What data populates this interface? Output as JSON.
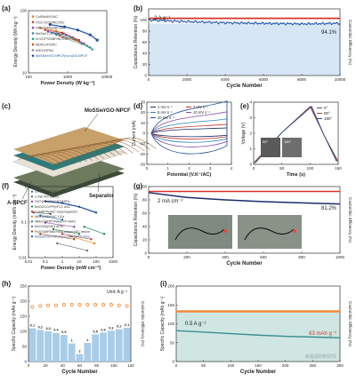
{
  "panels": {
    "a": {
      "label": "(a)"
    },
    "b": {
      "label": "(b)"
    },
    "c": {
      "label": "(c)"
    },
    "d": {
      "label": "(d)"
    },
    "e": {
      "label": "(e)"
    },
    "f": {
      "label": "(f)"
    },
    "g": {
      "label": "(g)"
    },
    "h": {
      "label": "(h)"
    },
    "i": {
      "label": "(i)"
    }
  },
  "watermark": "新能源材料研究",
  "colors": {
    "blue": "#2b5fb0",
    "red": "#d9322b",
    "orange": "#ef8a3a",
    "lightblue": "#a9cde8",
    "teal": "#3a8f8f",
    "navy": "#1a2c6b"
  },
  "chart_data": [
    {
      "id": "a",
      "type": "scatter",
      "xlabel": "Power Density (W kg⁻¹)",
      "ylabel": "Energy Density (Wh kg⁻¹)",
      "xscale": "log",
      "yscale": "log",
      "xticks": [
        "100",
        "1000",
        "10000"
      ],
      "yticks": [
        "10",
        "100"
      ],
      "legend": [
        "Co9Se8//G/AC",
        "VO2-V2O5/NC//AC",
        "NiSe2/NiSe/NF//AC",
        "MoSe2-C-CNTs//AC",
        "N-VC/PVMBP/NC/NA",
        "MDPC//PDPC",
        "KNO//DPAC",
        "MoSSe/rGO-NPCF(no.s)//A-NPCF"
      ],
      "legend_colors": [
        "#e67e22",
        "#c0392b",
        "#8e44ad",
        "#2980b9",
        "#16a085",
        "#d35400",
        "#7f8c8d",
        "#1f4e9c"
      ],
      "series": [
        {
          "values": [
            [
              80,
              58
            ],
            [
              300,
              50
            ],
            [
              1200,
              35
            ],
            [
              4000,
              22
            ]
          ]
        },
        {
          "values": [
            [
              120,
              52
            ],
            [
              500,
              45
            ],
            [
              2000,
              30
            ]
          ]
        },
        {
          "values": [
            [
              150,
              48
            ],
            [
              700,
              40
            ],
            [
              3000,
              25
            ]
          ]
        },
        {
          "values": [
            [
              200,
              45
            ],
            [
              1000,
              35
            ],
            [
              5000,
              20
            ]
          ]
        },
        {
          "values": [
            [
              300,
              40
            ],
            [
              1500,
              30
            ],
            [
              6000,
              18
            ]
          ]
        },
        {
          "values": [
            [
              400,
              38
            ],
            [
              2000,
              28
            ]
          ]
        },
        {
          "values": [
            [
              500,
              35
            ],
            [
              2500,
              24
            ]
          ]
        },
        {
          "values": [
            [
              180,
              70
            ],
            [
              600,
              62
            ],
            [
              1800,
              52
            ],
            [
              5000,
              40
            ],
            [
              9000,
              30
            ]
          ]
        }
      ]
    },
    {
      "id": "b",
      "type": "line",
      "xlabel": "Cycle Number",
      "ylabel": "Capacitance Retention (%)",
      "y2label": "Coulombic Efficiency (%)",
      "xlim": [
        0,
        10000
      ],
      "ylim": [
        0,
        120
      ],
      "xticks": [
        "0",
        "2000",
        "4000",
        "6000",
        "8000",
        "10000"
      ],
      "yticks": [
        "0",
        "20",
        "40",
        "60",
        "80",
        "100"
      ],
      "annotation": "2 A g⁻¹",
      "end_label": "94.1%",
      "series": [
        {
          "values": [
            [
              0,
              100
            ],
            [
              2000,
              97
            ],
            [
              4000,
              95
            ],
            [
              6000,
              94
            ],
            [
              8000,
              93
            ],
            [
              10000,
              94.1
            ]
          ]
        },
        {
          "values": [
            [
              0,
              100
            ],
            [
              10000,
              100
            ]
          ]
        }
      ]
    },
    {
      "id": "d",
      "type": "line",
      "xlabel": "Potential (V.K⁻/AC)",
      "ylabel": "Current (mA)",
      "xticks": [
        "0",
        "1",
        "2",
        "3",
        "4"
      ],
      "yticks": [
        "-30",
        "-20",
        "-10",
        "0",
        "10",
        "20",
        "30"
      ],
      "legend": [
        "1 mV s⁻¹",
        "2 mV s⁻¹",
        "5 mV s⁻¹",
        "10 mV s⁻¹",
        "20 mV s⁻¹"
      ]
    },
    {
      "id": "e",
      "type": "line",
      "xlabel": "Time (s)",
      "ylabel": "Voltage (V)",
      "xticks": [
        "0",
        "50",
        "100",
        "150"
      ],
      "yticks": [
        "0",
        "1",
        "2",
        "3",
        "4"
      ],
      "legend": [
        "0°",
        "90°",
        "180°"
      ],
      "series": [
        {
          "values": [
            [
              0,
              0.1
            ],
            [
              100,
              4
            ],
            [
              150,
              0.2
            ]
          ]
        }
      ]
    },
    {
      "id": "f",
      "type": "scatter",
      "xlabel": "Power Density (mW cm⁻³)",
      "ylabel": "Energy Density (mWh cm⁻³)",
      "xscale": "log",
      "yscale": "log",
      "xticks": [
        "0.01",
        "0.1",
        "1",
        "10",
        "100",
        "1000"
      ],
      "yticks": [
        "0.01",
        "0.1",
        "1"
      ],
      "legend": [
        "GF/NTO//CT NC",
        "Li thin film battery",
        "CNT@MnO2//CNT@PPy",
        "MnO2/CC//PPy/FCC ASC",
        "CuS@PPy//AC Supercapacitor",
        "NiSe2/NiSe//AC LICe",
        "NiMnO3/FPP//NiAA:FP FAAS",
        "MnO2/Ni(OH)2 APSC",
        "Fe2O3@PANI//PANI-based ASC device",
        "MoSSe/rGO-NPCF(no.s)//A-NPCF KiCe"
      ],
      "legend_colors": [
        "#2471a3",
        "#555555",
        "#7d3c98",
        "#1e8449",
        "#b03a2e",
        "#d68910",
        "#117a65",
        "#5d6d7e",
        "#a04000",
        "#1f4e9c"
      ],
      "series": [
        {
          "values": [
            [
              0.05,
              0.3
            ],
            [
              1,
              0.2
            ]
          ]
        },
        {
          "values": [
            [
              0.02,
              0.4
            ],
            [
              0.2,
              0.35
            ]
          ]
        },
        {
          "values": [
            [
              0.1,
              0.15
            ],
            [
              5,
              0.1
            ]
          ]
        },
        {
          "values": [
            [
              0.3,
              0.08
            ],
            [
              10,
              0.05
            ]
          ]
        },
        {
          "values": [
            [
              1,
              0.05
            ],
            [
              50,
              0.03
            ]
          ]
        },
        {
          "values": [
            [
              3,
              0.04
            ],
            [
              80,
              0.02
            ]
          ]
        },
        {
          "values": [
            [
              20,
              0.1
            ],
            [
              300,
              0.05
            ]
          ]
        },
        {
          "values": [
            [
              0.5,
              0.02
            ],
            [
              30,
              0.01
            ]
          ]
        },
        {
          "values": [
            [
              0.05,
              0.05
            ],
            [
              5,
              0.03
            ]
          ]
        },
        {
          "values": [
            [
              0.1,
              1.2
            ],
            [
              1,
              1.0
            ],
            [
              10,
              0.7
            ],
            [
              100,
              0.4
            ]
          ]
        }
      ]
    },
    {
      "id": "g",
      "type": "line",
      "xlabel": "Cycle Number",
      "ylabel": "Capacitance Retention (%)",
      "y2label": "Coulombic Efficiency (%)",
      "xlim": [
        0,
        1000
      ],
      "ylim": [
        0,
        100
      ],
      "xticks": [
        "0",
        "200",
        "400",
        "600",
        "800",
        "1000"
      ],
      "yticks": [
        "0",
        "20",
        "40",
        "60",
        "80",
        "100"
      ],
      "annotation": "2 mA cm⁻²",
      "end_label": "81.2%",
      "series": [
        {
          "values": [
            [
              0,
              100
            ],
            [
              200,
              92
            ],
            [
              400,
              88
            ],
            [
              600,
              85
            ],
            [
              800,
              83
            ],
            [
              1000,
              81.2
            ]
          ]
        },
        {
          "values": [
            [
              0,
              100
            ],
            [
              1000,
              100
            ]
          ]
        }
      ]
    },
    {
      "id": "h",
      "type": "bar",
      "xlabel": "Cycle Number",
      "ylabel": "Specific Capacity (mAh g⁻¹)",
      "y2label": "Coulombic Efficiency (%)",
      "xlim": [
        0,
        130
      ],
      "ylim": [
        0,
        250
      ],
      "xticks": [
        "0",
        "20",
        "40",
        "60",
        "80",
        "100",
        "120"
      ],
      "yticks": [
        "0",
        "50",
        "100",
        "150",
        "200",
        "250"
      ],
      "unit_label": "Unit: A g⁻¹",
      "rate_labels": [
        "0.1",
        "0.2",
        "0.3",
        "0.4",
        "0.5",
        "1",
        "2",
        "1",
        "0.5",
        "0.4",
        "0.3",
        "0.2",
        "0.1"
      ],
      "capacity": [
        110,
        105,
        100,
        95,
        88,
        60,
        25,
        62,
        90,
        96,
        102,
        107,
        112
      ],
      "efficiency": [
        95,
        97,
        98,
        98,
        99,
        99,
        99,
        99,
        99,
        99,
        99,
        98,
        97
      ]
    },
    {
      "id": "i",
      "type": "line",
      "xlabel": "Cycle Number",
      "ylabel": "Specific Capacity (mAh g⁻¹)",
      "y2label": "Coulombic Efficiency (%)",
      "xlim": [
        0,
        300
      ],
      "ylim": [
        0,
        200
      ],
      "xticks": [
        "0",
        "50",
        "100",
        "150",
        "200",
        "250",
        "300"
      ],
      "yticks": [
        "0",
        "50",
        "100",
        "150",
        "200"
      ],
      "annotation": "0.5 A g⁻¹",
      "end_label": "63 mAh g⁻¹",
      "series": [
        {
          "values": [
            [
              0,
              82
            ],
            [
              50,
              78
            ],
            [
              100,
              74
            ],
            [
              150,
              70
            ],
            [
              200,
              67
            ],
            [
              250,
              65
            ],
            [
              300,
              63
            ]
          ]
        },
        {
          "values": [
            [
              0,
              100
            ],
            [
              300,
              100
            ]
          ]
        }
      ]
    }
  ],
  "labels": {
    "c_mos": "MoSSe/rGO-NPCF",
    "c_anpcf": "A-NPCF",
    "c_sep": "Separator",
    "e_insets": [
      "90°",
      "180°"
    ]
  }
}
